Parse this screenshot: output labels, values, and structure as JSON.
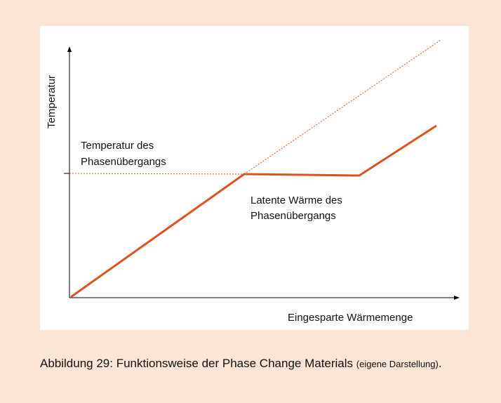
{
  "diagram": {
    "y_axis_label": "Temperatur",
    "x_axis_label": "Eingesparte Wärmemenge",
    "annotations": [
      "Temperatur des",
      "Phasenübergangs",
      "Latente Wärme des",
      "Phasenübergangs"
    ]
  },
  "caption": {
    "text": "Abbildung 29: Funktionsweise der Phase Change Materials",
    "note": "(eigene Darstellung)",
    "end": "."
  }
}
